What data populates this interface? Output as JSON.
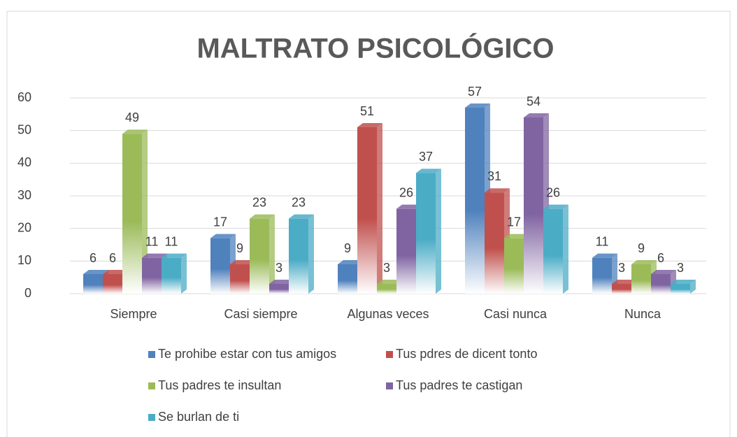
{
  "chart_data": {
    "type": "bar",
    "title": "MALTRATO PSICOLÓGICO",
    "categories": [
      "Siempre",
      "Casi siempre",
      "Algunas veces",
      "Casi nunca",
      "Nunca"
    ],
    "series": [
      {
        "name": "Te prohibe estar con tus amigos",
        "color": "#4f81bd",
        "values": [
          6,
          17,
          9,
          57,
          11
        ]
      },
      {
        "name": "Tus pdres de dicent tonto",
        "color": "#c0504d",
        "values": [
          6,
          9,
          51,
          31,
          3
        ]
      },
      {
        "name": "Tus padres te insultan",
        "color": "#9bbb59",
        "values": [
          49,
          23,
          3,
          17,
          9
        ]
      },
      {
        "name": "Tus padres te castigan",
        "color": "#8064a2",
        "values": [
          11,
          3,
          26,
          54,
          6
        ]
      },
      {
        "name": "Se burlan de ti",
        "color": "#4bacc6",
        "values": [
          11,
          23,
          37,
          26,
          3
        ]
      }
    ],
    "ylim": [
      0,
      60
    ],
    "yticks": [
      0,
      10,
      20,
      30,
      40,
      50,
      60
    ],
    "grid": true,
    "legend": "bottom"
  }
}
